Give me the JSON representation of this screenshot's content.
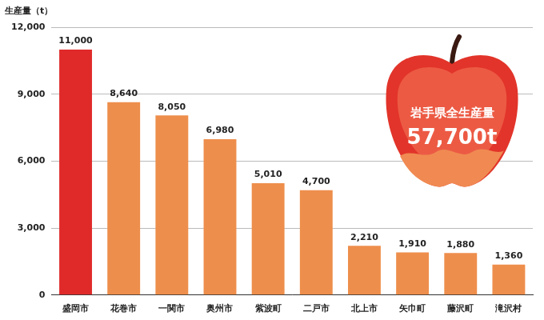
{
  "chart_data": {
    "type": "bar",
    "y_label": "生産量（t）",
    "categories": [
      "盛岡市",
      "花巻市",
      "一関市",
      "奥州市",
      "紫波町",
      "二戸市",
      "北上市",
      "矢巾町",
      "藤沢町",
      "滝沢村"
    ],
    "values": [
      11000,
      8640,
      8050,
      6980,
      5010,
      4700,
      2210,
      1910,
      1880,
      1360
    ],
    "value_labels": [
      "11,000",
      "8,640",
      "8,050",
      "6,980",
      "5,010",
      "4,700",
      "2,210",
      "1,910",
      "1,880",
      "1,360"
    ],
    "colors": [
      "#e02a2a",
      "#ee8e4c",
      "#ee8e4c",
      "#ee8e4c",
      "#ee8e4c",
      "#ee8e4c",
      "#ee8e4c",
      "#ee8e4c",
      "#ee8e4c",
      "#ee8e4c"
    ],
    "ylim": [
      0,
      12000
    ],
    "yticks": [
      0,
      {
        "value": 3000,
        "label": "3,000"
      },
      {
        "value": 6000,
        "label": "6,000"
      },
      {
        "value": 9000,
        "label": "9,000"
      },
      {
        "value": 12000,
        "label": "12,000"
      }
    ],
    "grid": true,
    "data_labels": true,
    "annotations": [
      "岩手県全生産量",
      "57,700t"
    ]
  }
}
